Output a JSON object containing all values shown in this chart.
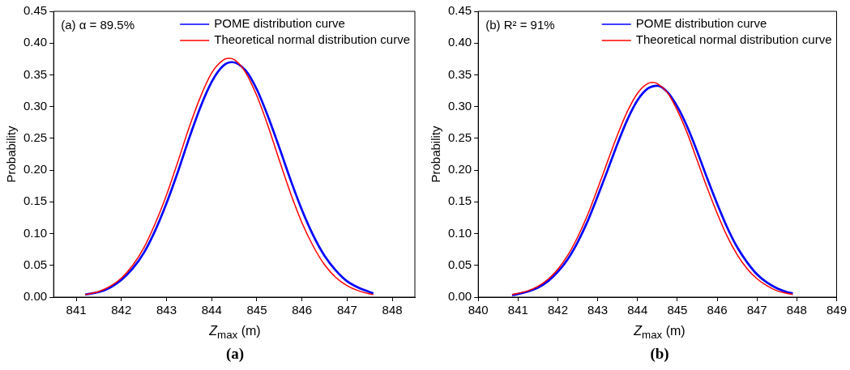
{
  "chart_data": [
    {
      "type": "line",
      "xlabel": "Z$_{max}$ (m)",
      "ylabel": "Probability",
      "xlim": [
        840.5,
        848.5
      ],
      "xticks": [
        841,
        842,
        843,
        844,
        845,
        846,
        847,
        848
      ],
      "ylim": [
        0,
        0.45
      ],
      "yticks": [
        {
          "value": 0,
          "label": "0.00"
        },
        {
          "value": 0.05,
          "label": "0.05"
        },
        {
          "value": 0.1,
          "label": "0.10"
        },
        {
          "value": 0.15,
          "label": "0.15"
        },
        {
          "value": 0.2,
          "label": "0.20"
        },
        {
          "value": 0.25,
          "label": "0.25"
        },
        {
          "value": 0.3,
          "label": "0.30"
        },
        {
          "value": 0.35,
          "label": "0.35"
        },
        {
          "value": 0.4,
          "label": "0.40"
        },
        {
          "value": 0.45,
          "label": "0.45"
        }
      ],
      "grid": false,
      "legend": "top right",
      "marker": "none",
      "line_style": "solid",
      "annotations": [
        "(a) α = 89.5%",
        "(a)"
      ],
      "series": [
        {
          "name": "POME distribution curve",
          "color": "#0000ff",
          "x": [
            841.2,
            841.5,
            841.75,
            842,
            842.25,
            842.5,
            842.75,
            843,
            843.25,
            843.5,
            843.75,
            844,
            844.25,
            844.45,
            844.75,
            845,
            845.25,
            845.5,
            845.75,
            846,
            846.25,
            846.5,
            846.75,
            847,
            847.25,
            847.5,
            847.58
          ],
          "values": [
            0.004,
            0.008,
            0.015,
            0.027,
            0.045,
            0.07,
            0.105,
            0.148,
            0.197,
            0.25,
            0.299,
            0.339,
            0.364,
            0.37,
            0.357,
            0.327,
            0.284,
            0.235,
            0.184,
            0.137,
            0.097,
            0.065,
            0.042,
            0.025,
            0.015,
            0.008,
            0.006
          ]
        },
        {
          "name": "Theoretical normal distribution curve",
          "color": "#ff0000",
          "x": [
            841.2,
            841.5,
            841.75,
            842,
            842.25,
            842.5,
            842.75,
            843,
            843.25,
            843.5,
            843.75,
            844,
            844.25,
            844.38,
            844.5,
            844.75,
            845,
            845.25,
            845.5,
            845.75,
            846,
            846.25,
            846.5,
            846.75,
            847,
            847.25,
            847.5,
            847.58
          ],
          "values": [
            0.004,
            0.009,
            0.017,
            0.03,
            0.05,
            0.078,
            0.116,
            0.161,
            0.213,
            0.267,
            0.315,
            0.353,
            0.373,
            0.376,
            0.374,
            0.354,
            0.317,
            0.269,
            0.215,
            0.163,
            0.117,
            0.08,
            0.051,
            0.031,
            0.018,
            0.01,
            0.005,
            0.004
          ]
        }
      ]
    },
    {
      "type": "line",
      "xlabel": "Z$_{max}$ (m)",
      "ylabel": "Probability",
      "xlim": [
        840,
        849
      ],
      "xticks": [
        840,
        841,
        842,
        843,
        844,
        845,
        846,
        847,
        848,
        849
      ],
      "ylim": [
        0,
        0.45
      ],
      "yticks": [
        {
          "value": 0,
          "label": "0.00"
        },
        {
          "value": 0.05,
          "label": "0.05"
        },
        {
          "value": 0.1,
          "label": "0.10"
        },
        {
          "value": 0.15,
          "label": "0.15"
        },
        {
          "value": 0.2,
          "label": "0.20"
        },
        {
          "value": 0.25,
          "label": "0.25"
        },
        {
          "value": 0.3,
          "label": "0.30"
        },
        {
          "value": 0.35,
          "label": "0.35"
        },
        {
          "value": 0.4,
          "label": "0.40"
        },
        {
          "value": 0.45,
          "label": "0.45"
        }
      ],
      "grid": false,
      "legend": "top right",
      "marker": "none",
      "line_style": "solid",
      "annotations": [
        "(b) R² = 91%",
        "(b)"
      ],
      "series": [
        {
          "name": "POME distribution curve",
          "color": "#0000ff",
          "x": [
            840.85,
            841,
            841.25,
            841.5,
            841.75,
            842,
            842.25,
            842.5,
            842.75,
            843,
            843.25,
            843.5,
            843.75,
            844,
            844.25,
            844.5,
            844.75,
            845,
            845.25,
            845.5,
            845.75,
            846,
            846.25,
            846.5,
            846.75,
            847,
            847.25,
            847.5,
            847.75,
            847.9
          ],
          "values": [
            0.003,
            0.005,
            0.009,
            0.015,
            0.025,
            0.04,
            0.06,
            0.087,
            0.12,
            0.159,
            0.2,
            0.242,
            0.28,
            0.31,
            0.328,
            0.333,
            0.323,
            0.3,
            0.268,
            0.229,
            0.187,
            0.147,
            0.11,
            0.079,
            0.055,
            0.036,
            0.023,
            0.014,
            0.008,
            0.006
          ]
        },
        {
          "name": "Theoretical normal distribution curve",
          "color": "#ff0000",
          "x": [
            840.85,
            841,
            841.25,
            841.5,
            841.75,
            842,
            842.25,
            842.5,
            842.75,
            843,
            843.25,
            843.5,
            843.75,
            844,
            844.25,
            844.38,
            844.5,
            844.75,
            845,
            845.25,
            845.5,
            845.75,
            846,
            846.25,
            846.5,
            846.75,
            847,
            847.25,
            847.5,
            847.75,
            847.9
          ],
          "values": [
            0.004,
            0.006,
            0.01,
            0.017,
            0.028,
            0.044,
            0.066,
            0.095,
            0.13,
            0.171,
            0.214,
            0.256,
            0.293,
            0.321,
            0.336,
            0.338,
            0.336,
            0.322,
            0.294,
            0.258,
            0.215,
            0.172,
            0.132,
            0.096,
            0.067,
            0.045,
            0.029,
            0.018,
            0.01,
            0.006,
            0.004
          ]
        }
      ]
    }
  ]
}
